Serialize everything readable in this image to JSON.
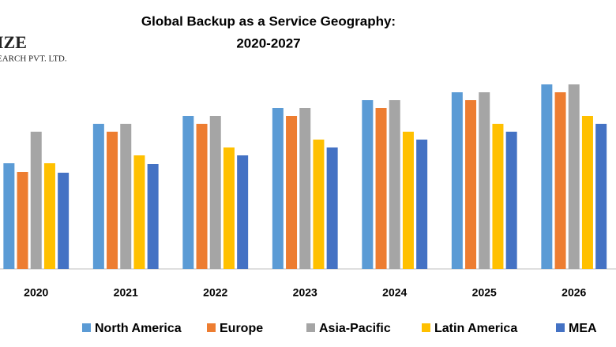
{
  "chart_data": {
    "type": "bar",
    "title": [
      "Global Backup as a Service Geography:",
      "2020-2027"
    ],
    "annotations": [
      "IZE",
      "EARCH PVT. LTD."
    ],
    "categories": [
      "2020",
      "2021",
      "2022",
      "2023",
      "2024",
      "2025",
      "2026"
    ],
    "series": [
      {
        "name": "North America",
        "color": "#5b9bd5",
        "values": [
          134,
          184,
          194,
          204,
          214,
          224,
          234
        ]
      },
      {
        "name": "Europe",
        "color": "#ed7d31",
        "values": [
          123,
          174,
          184,
          194,
          204,
          214,
          224
        ]
      },
      {
        "name": "Asia-Pacific",
        "color": "#a5a5a5",
        "values": [
          174,
          184,
          194,
          204,
          214,
          224,
          234
        ]
      },
      {
        "name": "Latin America",
        "color": "#ffc000",
        "values": [
          134,
          144,
          154,
          164,
          174,
          184,
          194
        ]
      },
      {
        "name": "MEA",
        "color": "#4472c4",
        "values": [
          122,
          133,
          144,
          154,
          164,
          174,
          184
        ]
      }
    ],
    "ylim": [
      0,
      250
    ],
    "grid": false,
    "legend": "bottom"
  }
}
